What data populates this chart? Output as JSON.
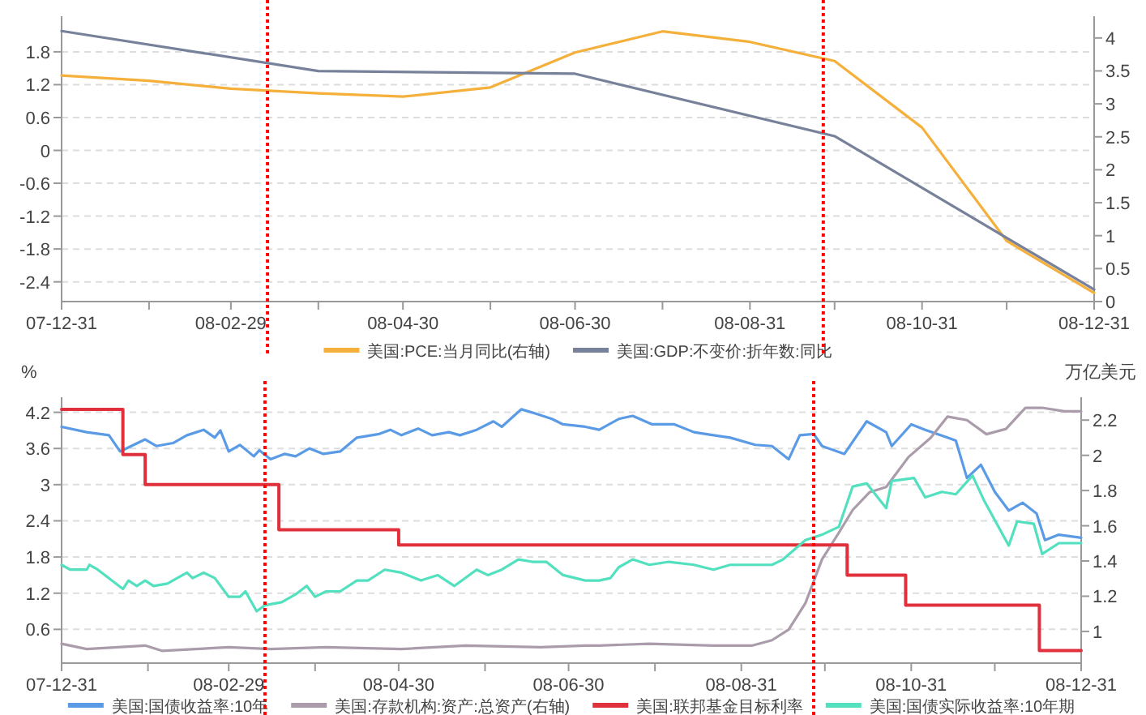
{
  "chart_data": [
    {
      "type": "line",
      "legend": "bottom",
      "grid": "y",
      "xlim": [
        "2007-12-31",
        "2008-12-31"
      ],
      "xticks": [
        {
          "value": "2007-12-31",
          "label": "07-12-31"
        },
        {
          "value": "2008-01-31",
          "label": null
        },
        {
          "value": "2008-02-29",
          "label": "08-02-29"
        },
        {
          "value": "2008-03-31",
          "label": null
        },
        {
          "value": "2008-04-30",
          "label": "08-04-30"
        },
        {
          "value": "2008-05-31",
          "label": null
        },
        {
          "value": "2008-06-30",
          "label": "08-06-30"
        },
        {
          "value": "2008-07-31",
          "label": null
        },
        {
          "value": "2008-08-31",
          "label": "08-08-31"
        },
        {
          "value": "2008-09-30",
          "label": null
        },
        {
          "value": "2008-10-31",
          "label": "08-10-31"
        },
        {
          "value": "2008-11-30",
          "label": null
        },
        {
          "value": "2008-12-31",
          "label": "08-12-31"
        }
      ],
      "ylim": [
        -2.76,
        2.45
      ],
      "yticks": [
        -2.4,
        -1.8,
        -1.2,
        -0.6,
        0,
        0.6,
        1.2,
        1.8
      ],
      "y2lim": [
        0,
        4.33
      ],
      "y2ticks": [
        0,
        0.5,
        1,
        1.5,
        2,
        2.5,
        3,
        3.5,
        4
      ],
      "ref_lines": [
        {
          "axis": "x",
          "value": "2008-03-13",
          "color": "#ff0000",
          "line_style": "dotted"
        },
        {
          "axis": "x",
          "value": "2008-09-26",
          "color": "#ff0000",
          "line_style": "dotted"
        }
      ],
      "series": [
        {
          "name": "美国:PCE:当月同比(右轴)",
          "color": "#f5b03c",
          "axis": "y2",
          "x": [
            "2007-12-31",
            "2008-01-31",
            "2008-02-29",
            "2008-03-31",
            "2008-04-30",
            "2008-05-31",
            "2008-06-30",
            "2008-07-31",
            "2008-08-31",
            "2008-09-30",
            "2008-10-31",
            "2008-11-30",
            "2008-12-31"
          ],
          "values": [
            3.43,
            3.35,
            3.23,
            3.16,
            3.11,
            3.25,
            3.78,
            4.1,
            3.94,
            3.65,
            2.64,
            0.92,
            0.13
          ]
        },
        {
          "name": "美国:GDP:不变价:折年数:同比",
          "color": "#77829a",
          "x": [
            "2007-12-31",
            "2008-03-31",
            "2008-06-30",
            "2008-09-30",
            "2008-12-31"
          ],
          "values": [
            2.18,
            1.45,
            1.4,
            0.26,
            -2.54
          ]
        }
      ]
    },
    {
      "type": "line",
      "legend": "bottom",
      "grid": "y",
      "ylabel": "%",
      "y2label": "万亿美元",
      "xlim": [
        "2007-12-31",
        "2008-12-31"
      ],
      "xticks": [
        {
          "value": "2007-12-31",
          "label": "07-12-31"
        },
        {
          "value": "2008-01-31",
          "label": null
        },
        {
          "value": "2008-02-29",
          "label": "08-02-29"
        },
        {
          "value": "2008-03-31",
          "label": null
        },
        {
          "value": "2008-04-30",
          "label": "08-04-30"
        },
        {
          "value": "2008-05-31",
          "label": null
        },
        {
          "value": "2008-06-30",
          "label": "08-06-30"
        },
        {
          "value": "2008-07-31",
          "label": null
        },
        {
          "value": "2008-08-31",
          "label": "08-08-31"
        },
        {
          "value": "2008-09-30",
          "label": null
        },
        {
          "value": "2008-10-31",
          "label": "08-10-31"
        },
        {
          "value": "2008-11-30",
          "label": null
        },
        {
          "value": "2008-12-31",
          "label": "08-12-31"
        }
      ],
      "ylim": [
        0.04,
        4.45
      ],
      "yticks": [
        0.6,
        1.2,
        1.8,
        2.4,
        3,
        3.6,
        4.2
      ],
      "y2lim": [
        0.82,
        2.33
      ],
      "y2ticks": [
        1,
        1.2,
        1.4,
        1.6,
        1.8,
        2,
        2.2
      ],
      "ref_lines": [
        {
          "axis": "x",
          "value": "2008-03-13",
          "color": "#ff0000",
          "line_style": "dotted"
        },
        {
          "axis": "x",
          "value": "2008-09-26",
          "color": "#ff0000",
          "line_style": "dotted"
        }
      ],
      "series": [
        {
          "name": "美国:国债收益率:10年",
          "color": "#5b9be6",
          "x": [
            "2007-12-31",
            "2008-01-09",
            "2008-01-17",
            "2008-01-21",
            "2008-01-25",
            "2008-01-30",
            "2008-02-03",
            "2008-02-09",
            "2008-02-14",
            "2008-02-20",
            "2008-02-24",
            "2008-02-26",
            "2008-02-29",
            "2008-03-04",
            "2008-03-09",
            "2008-03-11",
            "2008-03-15",
            "2008-03-20",
            "2008-03-24",
            "2008-03-29",
            "2008-04-03",
            "2008-04-09",
            "2008-04-15",
            "2008-04-23",
            "2008-04-27",
            "2008-05-01",
            "2008-05-07",
            "2008-05-12",
            "2008-05-18",
            "2008-05-22",
            "2008-05-28",
            "2008-06-03",
            "2008-06-06",
            "2008-06-13",
            "2008-06-18",
            "2008-06-24",
            "2008-06-28",
            "2008-07-06",
            "2008-07-11",
            "2008-07-18",
            "2008-07-23",
            "2008-07-30",
            "2008-08-07",
            "2008-08-14",
            "2008-08-21",
            "2008-08-27",
            "2008-09-05",
            "2008-09-11",
            "2008-09-17",
            "2008-09-21",
            "2008-09-26",
            "2008-09-29",
            "2008-10-07",
            "2008-10-15",
            "2008-10-22",
            "2008-10-24",
            "2008-10-31",
            "2008-11-05",
            "2008-11-13",
            "2008-11-16",
            "2008-11-20",
            "2008-11-25",
            "2008-11-30",
            "2008-12-05",
            "2008-12-10",
            "2008-12-15",
            "2008-12-18",
            "2008-12-23",
            "2008-12-31"
          ],
          "values": [
            3.96,
            3.87,
            3.82,
            3.55,
            3.64,
            3.75,
            3.64,
            3.69,
            3.82,
            3.91,
            3.78,
            3.9,
            3.55,
            3.66,
            3.47,
            3.57,
            3.42,
            3.51,
            3.47,
            3.6,
            3.51,
            3.55,
            3.78,
            3.84,
            3.91,
            3.82,
            3.93,
            3.82,
            3.87,
            3.82,
            3.91,
            4.05,
            3.96,
            4.25,
            4.18,
            4.09,
            4.0,
            3.96,
            3.91,
            4.09,
            4.14,
            4.0,
            4.0,
            3.87,
            3.82,
            3.78,
            3.66,
            3.64,
            3.42,
            3.82,
            3.84,
            3.64,
            3.51,
            4.05,
            3.87,
            3.64,
            4.0,
            3.91,
            3.78,
            3.73,
            3.11,
            3.33,
            2.88,
            2.57,
            2.7,
            2.52,
            2.08,
            2.17,
            2.12
          ]
        },
        {
          "name": "美国:存款机构:资产:总资产(右轴)",
          "color": "#ab9cab",
          "axis": "y2",
          "x": [
            "2007-12-31",
            "2008-01-09",
            "2008-01-30",
            "2008-02-05",
            "2008-02-29",
            "2008-03-15",
            "2008-04-04",
            "2008-05-01",
            "2008-05-24",
            "2008-06-20",
            "2008-07-06",
            "2008-07-11",
            "2008-07-29",
            "2008-08-21",
            "2008-09-04",
            "2008-09-11",
            "2008-09-17",
            "2008-09-23",
            "2008-09-29",
            "2008-10-05",
            "2008-10-10",
            "2008-10-16",
            "2008-10-22",
            "2008-10-30",
            "2008-11-07",
            "2008-11-13",
            "2008-11-20",
            "2008-11-27",
            "2008-12-04",
            "2008-12-11",
            "2008-12-17",
            "2008-12-25",
            "2008-12-31"
          ],
          "values": [
            0.93,
            0.9,
            0.92,
            0.89,
            0.91,
            0.9,
            0.91,
            0.9,
            0.92,
            0.91,
            0.92,
            0.92,
            0.93,
            0.92,
            0.92,
            0.95,
            1.01,
            1.16,
            1.41,
            1.56,
            1.69,
            1.79,
            1.82,
            1.99,
            2.1,
            2.22,
            2.2,
            2.12,
            2.15,
            2.27,
            2.27,
            2.25,
            2.25
          ]
        },
        {
          "name": "美国:联邦基金目标利率",
          "color": "#e0303c",
          "type": "step",
          "x": [
            "2007-12-31",
            "2008-01-22",
            "2008-01-30",
            "2008-03-18",
            "2008-04-30",
            "2008-10-08",
            "2008-10-29",
            "2008-12-16",
            "2008-12-31"
          ],
          "values": [
            4.25,
            3.5,
            3.0,
            2.25,
            2.0,
            1.5,
            1.0,
            0.25,
            0.25
          ]
        },
        {
          "name": "美国:国债实际收益率:10年期",
          "color": "#52e0bf",
          "x": [
            "2007-12-31",
            "2008-01-03",
            "2008-01-09",
            "2008-01-10",
            "2008-01-13",
            "2008-01-22",
            "2008-01-24",
            "2008-01-27",
            "2008-01-30",
            "2008-02-02",
            "2008-02-07",
            "2008-02-14",
            "2008-02-16",
            "2008-02-20",
            "2008-02-24",
            "2008-02-29",
            "2008-03-04",
            "2008-03-06",
            "2008-03-10",
            "2008-03-13",
            "2008-03-19",
            "2008-03-24",
            "2008-03-28",
            "2008-03-31",
            "2008-04-04",
            "2008-04-09",
            "2008-04-15",
            "2008-04-19",
            "2008-04-25",
            "2008-05-01",
            "2008-05-08",
            "2008-05-14",
            "2008-05-20",
            "2008-05-28",
            "2008-06-01",
            "2008-06-06",
            "2008-06-12",
            "2008-06-17",
            "2008-06-22",
            "2008-06-28",
            "2008-07-06",
            "2008-07-11",
            "2008-07-15",
            "2008-07-18",
            "2008-07-23",
            "2008-07-29",
            "2008-08-05",
            "2008-08-14",
            "2008-08-21",
            "2008-08-27",
            "2008-09-05",
            "2008-09-11",
            "2008-09-15",
            "2008-09-23",
            "2008-09-29",
            "2008-10-05",
            "2008-10-10",
            "2008-10-15",
            "2008-10-22",
            "2008-10-24",
            "2008-11-01",
            "2008-11-05",
            "2008-11-11",
            "2008-11-16",
            "2008-11-22",
            "2008-11-26",
            "2008-12-05",
            "2008-12-08",
            "2008-12-14",
            "2008-12-17",
            "2008-12-23",
            "2008-12-31"
          ],
          "values": [
            1.67,
            1.59,
            1.59,
            1.67,
            1.59,
            1.27,
            1.41,
            1.32,
            1.41,
            1.32,
            1.36,
            1.54,
            1.45,
            1.54,
            1.45,
            1.14,
            1.14,
            1.23,
            0.9,
            1.0,
            1.05,
            1.18,
            1.32,
            1.14,
            1.23,
            1.23,
            1.41,
            1.41,
            1.59,
            1.54,
            1.41,
            1.5,
            1.32,
            1.59,
            1.5,
            1.59,
            1.76,
            1.72,
            1.72,
            1.5,
            1.41,
            1.41,
            1.45,
            1.63,
            1.76,
            1.67,
            1.72,
            1.67,
            1.59,
            1.67,
            1.67,
            1.67,
            1.76,
            2.08,
            2.17,
            2.3,
            2.97,
            3.02,
            2.61,
            3.06,
            3.11,
            2.79,
            2.88,
            2.84,
            3.15,
            2.75,
            1.99,
            2.39,
            2.35,
            1.85,
            2.03,
            2.03
          ]
        }
      ]
    }
  ]
}
